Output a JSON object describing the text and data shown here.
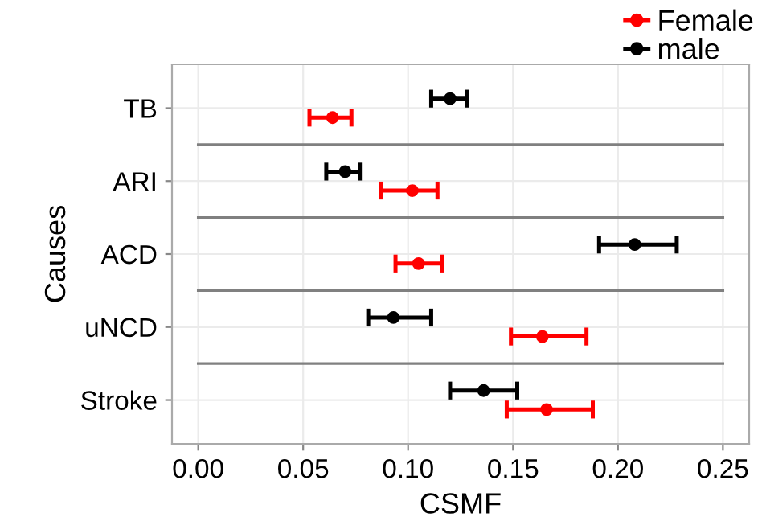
{
  "chart_data": {
    "type": "scatter",
    "orientation": "horizontal",
    "xlabel": "CSMF",
    "ylabel": "Causes",
    "categories": [
      "TB",
      "ARI",
      "ACD",
      "uNCD",
      "Stroke"
    ],
    "series": [
      {
        "name": "Female",
        "color": "#ff0000",
        "values": [
          0.064,
          0.102,
          0.105,
          0.164,
          0.166
        ],
        "errors": [
          [
            0.053,
            0.073
          ],
          [
            0.087,
            0.114
          ],
          [
            0.094,
            0.116
          ],
          [
            0.149,
            0.185
          ],
          [
            0.147,
            0.188
          ]
        ]
      },
      {
        "name": "male",
        "color": "#000000",
        "values": [
          0.12,
          0.07,
          0.208,
          0.093,
          0.136
        ],
        "errors": [
          [
            0.111,
            0.128
          ],
          [
            0.061,
            0.077
          ],
          [
            0.191,
            0.228
          ],
          [
            0.081,
            0.111
          ],
          [
            0.12,
            0.152
          ]
        ]
      }
    ],
    "xlim": [
      -0.0125,
      0.2625
    ],
    "xticks": [
      {
        "value": 0,
        "label": "0.00"
      },
      {
        "value": 0.05,
        "label": "0.05"
      },
      {
        "value": 0.1,
        "label": "0.10"
      },
      {
        "value": 0.15,
        "label": "0.15"
      },
      {
        "value": 0.2,
        "label": "0.20"
      },
      {
        "value": 0.25,
        "label": "0.25"
      }
    ],
    "grid": true,
    "legend": "top right",
    "marker": "circle"
  }
}
